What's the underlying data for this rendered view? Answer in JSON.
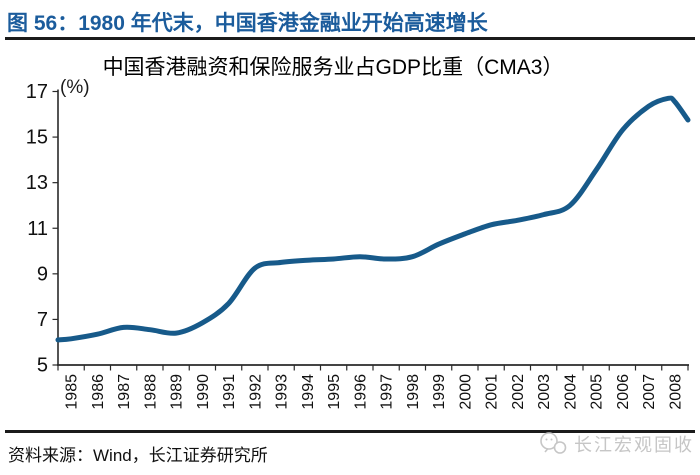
{
  "figure": {
    "caption": "图 56：1980 年代末，中国香港金融业开始高速增长",
    "accent_color": "#1b5c9c",
    "rule_color": "#1b1b1b"
  },
  "chart_data": {
    "type": "line",
    "title": "中国香港融资和保险服务业占GDP比重（CMA3）",
    "y_axis_unit": "(%)",
    "ylim": [
      5,
      17
    ],
    "y_ticks": [
      5,
      7,
      9,
      11,
      13,
      15,
      17
    ],
    "x_tick_labels": [
      "1985",
      "1986",
      "1987",
      "1988",
      "1989",
      "1990",
      "1991",
      "1992",
      "1993",
      "1994",
      "1995",
      "1996",
      "1997",
      "1998",
      "1999",
      "2000",
      "2001",
      "2002",
      "2003",
      "2004",
      "2005",
      "2006",
      "2007",
      "2008"
    ],
    "grid": "off",
    "legend": "none",
    "line_color": "#175a8a",
    "axis_color": "#2a2a2a",
    "series": [
      {
        "name": "中国香港融资和保险服务业占GDP比重（CMA3）",
        "points": [
          [
            1984.5,
            6.1
          ],
          [
            1985,
            6.15
          ],
          [
            1986,
            6.35
          ],
          [
            1987,
            6.65
          ],
          [
            1988,
            6.55
          ],
          [
            1989,
            6.4
          ],
          [
            1990,
            6.85
          ],
          [
            1991,
            7.7
          ],
          [
            1992,
            9.25
          ],
          [
            1993,
            9.5
          ],
          [
            1994,
            9.6
          ],
          [
            1995,
            9.65
          ],
          [
            1996,
            9.75
          ],
          [
            1997,
            9.65
          ],
          [
            1998,
            9.75
          ],
          [
            1999,
            10.3
          ],
          [
            2000,
            10.75
          ],
          [
            2001,
            11.15
          ],
          [
            2002,
            11.35
          ],
          [
            2003,
            11.6
          ],
          [
            2004,
            12.0
          ],
          [
            2005,
            13.55
          ],
          [
            2006,
            15.3
          ],
          [
            2007,
            16.35
          ],
          [
            2007.75,
            16.7
          ],
          [
            2008,
            16.55
          ],
          [
            2008.5,
            15.75
          ]
        ]
      }
    ]
  },
  "footer": {
    "source": "资料来源：Wind，长江证券研究所",
    "watermark": "长江宏观固收",
    "watermark_color": "#c6c6c6"
  }
}
